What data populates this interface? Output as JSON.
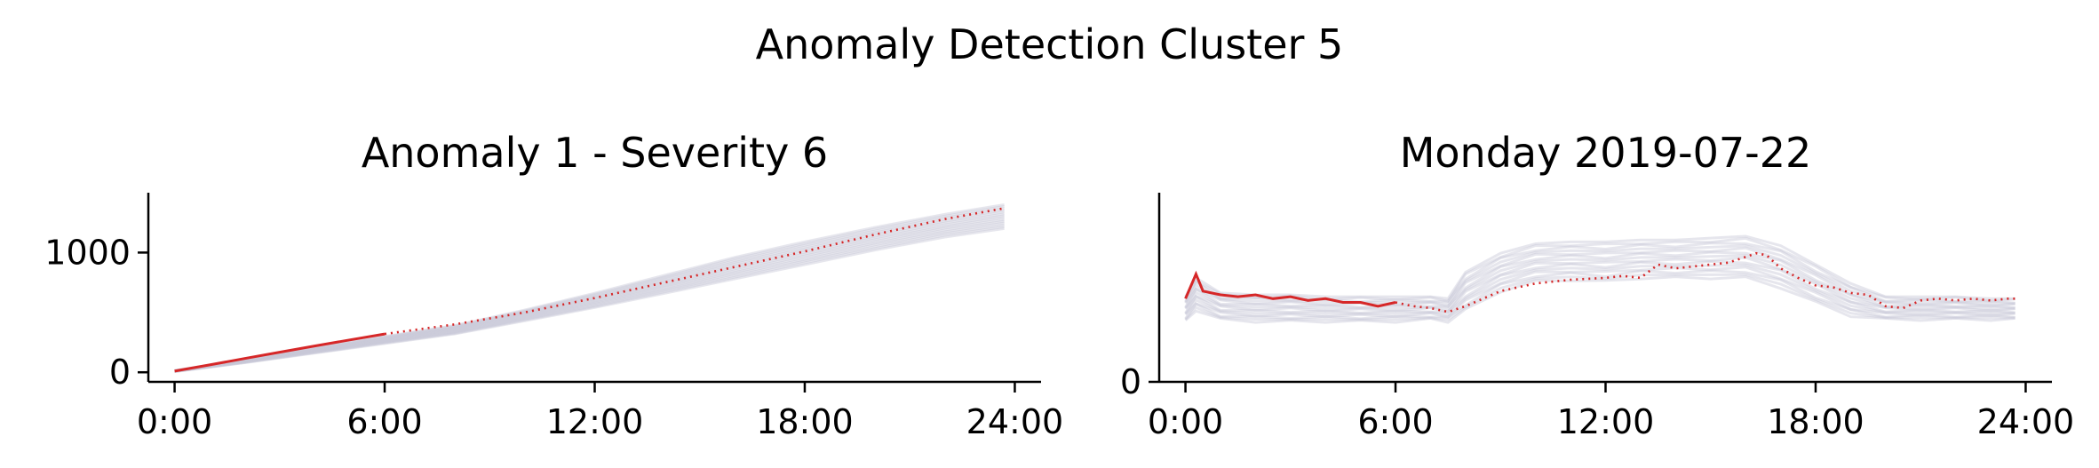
{
  "figure_title": "Anomaly Detection Cluster 5",
  "colors": {
    "highlight": "#d62728",
    "background_series": "#c8c8d6",
    "axis": "#000000"
  },
  "chart_data": [
    {
      "type": "line",
      "title": "Anomaly 1 - Severity 6",
      "xlabel": "",
      "ylabel": "",
      "xlim": [
        -0.75,
        24.75
      ],
      "ylim": [
        -80,
        1500
      ],
      "xticks": [
        0,
        6,
        12,
        18,
        24
      ],
      "xtick_labels": [
        "0:00",
        "6:00",
        "12:00",
        "18:00",
        "24:00"
      ],
      "yticks": [
        0,
        1000
      ],
      "ytick_labels": [
        "0",
        "1000"
      ],
      "grid": false,
      "legend": "none",
      "background_band": {
        "description": "many overlapping gray series (cumulative)",
        "x": [
          0,
          2,
          4,
          6,
          8,
          10,
          12,
          14,
          16,
          18,
          20,
          22,
          23.7
        ],
        "lower": [
          5,
          80,
          160,
          240,
          320,
          430,
          540,
          660,
          780,
          900,
          1020,
          1130,
          1200
        ],
        "upper": [
          15,
          105,
          205,
          300,
          390,
          520,
          660,
          810,
          960,
          1090,
          1210,
          1320,
          1400
        ]
      },
      "series": [
        {
          "style": "solid",
          "x": [
            0,
            1,
            2,
            3,
            4,
            5,
            6
          ],
          "y": [
            10,
            62,
            115,
            168,
            220,
            270,
            320
          ]
        },
        {
          "style": "dotted",
          "x": [
            6,
            8,
            10,
            12,
            14,
            16,
            18,
            20,
            22,
            23.7
          ],
          "y": [
            320,
            400,
            500,
            620,
            750,
            880,
            1010,
            1150,
            1280,
            1370
          ]
        }
      ]
    },
    {
      "type": "line",
      "title": "Monday 2019-07-22",
      "xlabel": "",
      "ylabel": "",
      "xlim": [
        -0.75,
        24.75
      ],
      "ylim": [
        0,
        100
      ],
      "xticks": [
        0,
        6,
        12,
        18,
        24
      ],
      "xtick_labels": [
        "0:00",
        "6:00",
        "12:00",
        "18:00",
        "24:00"
      ],
      "yticks": [
        0
      ],
      "ytick_labels": [
        "0"
      ],
      "grid": false,
      "legend": "none",
      "background_band": {
        "description": "many overlapping gray series (daily profile)",
        "x": [
          0,
          0.3,
          1,
          2,
          3,
          4,
          5,
          6,
          7,
          7.5,
          8,
          9,
          10,
          11,
          12,
          13,
          14,
          15,
          16,
          17,
          18,
          19,
          20,
          21,
          22,
          23,
          23.7
        ],
        "lower": [
          32,
          38,
          33,
          32,
          32,
          32,
          32,
          32,
          33,
          32,
          38,
          48,
          53,
          54,
          53,
          55,
          55,
          55,
          55,
          50,
          42,
          35,
          33,
          33,
          33,
          33,
          33
        ],
        "upper": [
          45,
          55,
          47,
          46,
          46,
          45,
          45,
          45,
          45,
          44,
          58,
          68,
          73,
          74,
          74,
          75,
          75,
          76,
          77,
          72,
          62,
          52,
          45,
          45,
          45,
          44,
          44
        ]
      },
      "series": [
        {
          "style": "solid",
          "x": [
            0,
            0.3,
            0.5,
            1,
            1.5,
            2,
            2.5,
            3,
            3.5,
            4,
            4.5,
            5,
            5.5,
            6
          ],
          "y": [
            44,
            57,
            48,
            46,
            45,
            46,
            44,
            45,
            43,
            44,
            42,
            42,
            40,
            42
          ]
        },
        {
          "style": "dotted",
          "x": [
            6,
            6.5,
            7,
            7.5,
            8,
            9,
            10,
            11,
            12,
            12.5,
            13,
            13.5,
            14,
            14.5,
            15,
            15.5,
            16,
            16.3,
            16.6,
            17,
            17.5,
            18,
            18.5,
            19,
            19.5,
            20,
            20.5,
            21,
            21.5,
            22,
            22.5,
            23,
            23.5,
            23.7
          ],
          "y": [
            42,
            40,
            39,
            37,
            40,
            48,
            52,
            54,
            55,
            56,
            55,
            62,
            60,
            61,
            62,
            63,
            66,
            68,
            67,
            60,
            55,
            51,
            50,
            47,
            46,
            40,
            39,
            43,
            44,
            43,
            44,
            43,
            44,
            44
          ]
        }
      ]
    }
  ]
}
